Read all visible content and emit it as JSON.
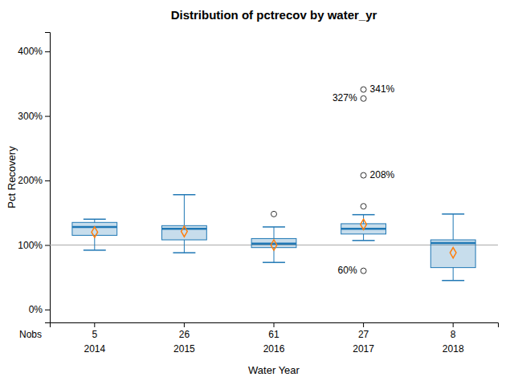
{
  "chart_data": {
    "type": "box",
    "title": "Distribution of pctrecov by water_yr",
    "xlabel": "Water Year",
    "ylabel": "Pct Recovery",
    "categories": [
      "2014",
      "2015",
      "2016",
      "2017",
      "2018"
    ],
    "boxes": [
      {
        "q1": 115,
        "median": 128,
        "q3": 135,
        "mean": 120,
        "whislo": 92,
        "whishi": 140
      },
      {
        "q1": 108,
        "median": 125,
        "q3": 130,
        "mean": 121,
        "whislo": 88,
        "whishi": 178
      },
      {
        "q1": 96,
        "median": 102,
        "q3": 110,
        "mean": 100,
        "whislo": 73,
        "whishi": 128
      },
      {
        "q1": 117,
        "median": 125,
        "q3": 133,
        "mean": 132,
        "whislo": 107,
        "whishi": 147
      },
      {
        "q1": 65,
        "median": 103,
        "q3": 108,
        "mean": 88,
        "whislo": 45,
        "whishi": 148
      }
    ],
    "outliers": [
      [],
      [],
      [
        148
      ],
      [
        60,
        160,
        208,
        327,
        341
      ],
      []
    ],
    "nobs_label": "Nobs",
    "nobs": [
      5,
      26,
      61,
      27,
      8
    ],
    "annotations": [
      {
        "category": "2017",
        "y": 341,
        "text": "341%"
      },
      {
        "category": "2017",
        "y": 327,
        "text": "327%"
      },
      {
        "category": "2017",
        "y": 208,
        "text": "208%"
      },
      {
        "category": "2017",
        "y": 60,
        "text": "60%"
      }
    ],
    "hline": 100,
    "ylim": [
      -20,
      430
    ],
    "yticks": [
      {
        "value": 0,
        "label": "0%"
      },
      {
        "value": 100,
        "label": "100%"
      },
      {
        "value": 200,
        "label": "200%"
      },
      {
        "value": 300,
        "label": "300%"
      },
      {
        "value": 400,
        "label": "400%"
      }
    ],
    "grid": false
  }
}
